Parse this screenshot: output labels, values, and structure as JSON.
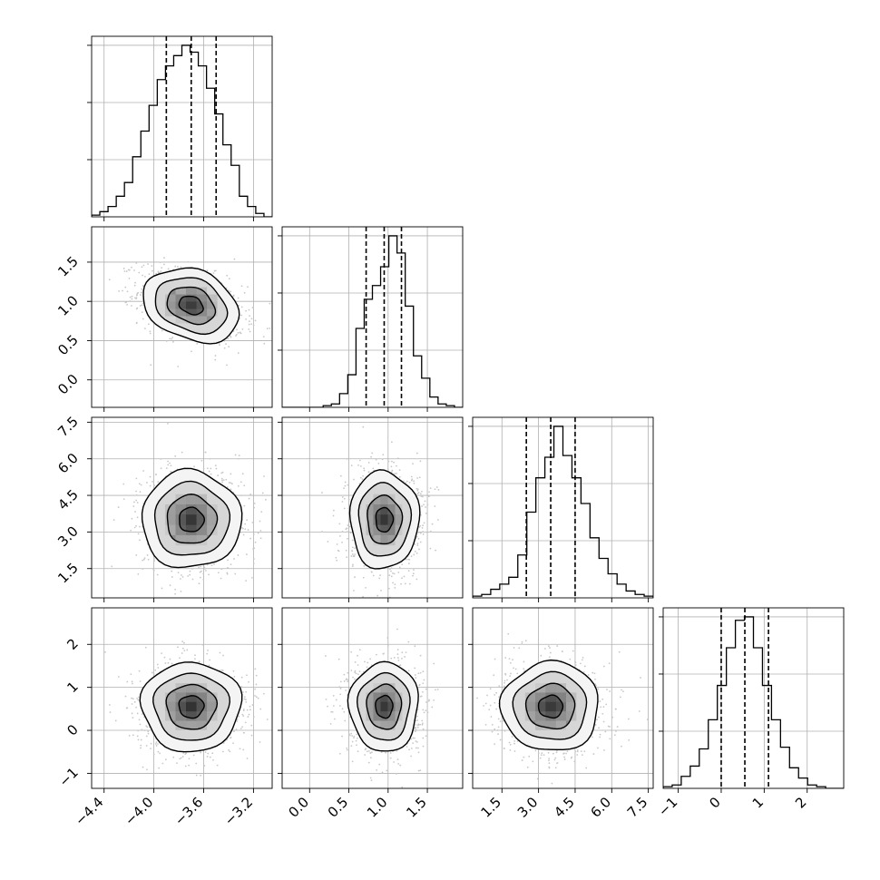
{
  "chart_data": {
    "type": "corner",
    "grid": true,
    "params": [
      {
        "range": [
          -4.5,
          -3.05
        ],
        "ticks": [
          -4.4,
          -4.0,
          -3.6,
          -3.2
        ],
        "tick_labels": [
          "−4.4",
          "−4.0",
          "−3.6",
          "−3.2"
        ],
        "mean": -3.7,
        "std": 0.2,
        "quantiles": [
          -3.9,
          -3.7,
          -3.5
        ],
        "hist_counts": [
          1,
          3,
          6,
          12,
          20,
          35,
          50,
          65,
          80,
          88,
          94,
          100,
          96,
          88,
          75,
          60,
          42,
          30,
          12,
          6,
          2,
          0
        ]
      },
      {
        "range": [
          -0.35,
          1.95
        ],
        "ticks": [
          0.0,
          0.5,
          1.0,
          1.5
        ],
        "tick_labels": [
          "0.0",
          "0.5",
          "1.0",
          "1.5"
        ],
        "mean": 0.95,
        "std": 0.22,
        "quantiles": [
          0.72,
          0.95,
          1.17
        ],
        "hist_counts": [
          0,
          0,
          0,
          0,
          0,
          1,
          2,
          8,
          19,
          46,
          63,
          71,
          82,
          100,
          90,
          59,
          30,
          17,
          6,
          2,
          1,
          0
        ]
      },
      {
        "range": [
          0.3,
          7.7
        ],
        "ticks": [
          1.5,
          3.0,
          4.5,
          6.0,
          7.5
        ],
        "tick_labels": [
          "1.5",
          "3.0",
          "4.5",
          "6.0",
          "7.5"
        ],
        "mean": 3.5,
        "std": 1.0,
        "quantiles": [
          2.5,
          3.5,
          4.5
        ],
        "hist_counts": [
          1,
          2,
          5,
          8,
          12,
          25,
          50,
          70,
          82,
          100,
          83,
          70,
          55,
          35,
          23,
          14,
          8,
          4,
          2,
          1
        ]
      },
      {
        "range": [
          -1.35,
          2.85
        ],
        "ticks": [
          -1,
          0,
          1,
          2
        ],
        "tick_labels": [
          "−1",
          "0",
          "1",
          "2"
        ],
        "mean": 0.55,
        "std": 0.52,
        "quantiles": [
          0.0,
          0.55,
          1.1
        ],
        "hist_counts": [
          1,
          2,
          7,
          13,
          23,
          40,
          60,
          82,
          98,
          100,
          82,
          60,
          40,
          24,
          12,
          6,
          2,
          1,
          0,
          0
        ]
      }
    ],
    "pairs": [
      {
        "x": 0,
        "y": 1,
        "corr": -0.38
      },
      {
        "x": 0,
        "y": 2,
        "corr": 0.0
      },
      {
        "x": 1,
        "y": 2,
        "corr": 0.0
      },
      {
        "x": 0,
        "y": 3,
        "corr": 0.0
      },
      {
        "x": 1,
        "y": 3,
        "corr": 0.0
      },
      {
        "x": 2,
        "y": 3,
        "corr": 0.0
      }
    ],
    "contour_levels_sigma": [
      0.5,
      1.0,
      1.5,
      2.0
    ],
    "colors": {
      "line": "#000000",
      "grid": "#b0b0b0",
      "scatter": "#c8c8c8",
      "fill_light": "#f4f4f4",
      "fill_mid": "#d6d6d6",
      "fill_dark": "#8a8a8a",
      "fill_core": "#2a2a2a"
    }
  }
}
